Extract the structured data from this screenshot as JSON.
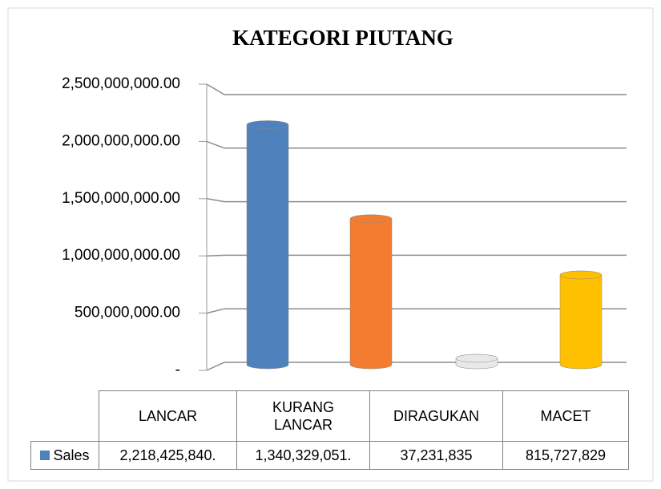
{
  "chart_data": {
    "type": "bar",
    "title": "KATEGORI PIUTANG",
    "categories": [
      "LANCAR",
      "KURANG LANCAR",
      "DIRAGUKAN",
      "MACET"
    ],
    "series": [
      {
        "name": "Sales",
        "color": "#4f81bd",
        "colors": [
          "#4f81bd",
          "#f47c30",
          "#e8e8e8",
          "#ffc000"
        ],
        "values": [
          2218425840,
          1340329051,
          37231835,
          815727829
        ],
        "value_labels": [
          "2,218,425,840.",
          "1,340,329,051.",
          "37,231,835",
          "815,727,829"
        ]
      }
    ],
    "ylim": [
      0,
      2500000000
    ],
    "yticks": [
      {
        "value": 0,
        "label": "-"
      },
      {
        "value": 500000000,
        "label": "500,000,000.00"
      },
      {
        "value": 1000000000,
        "label": "1,000,000,000.00"
      },
      {
        "value": 1500000000,
        "label": "1,500,000,000.00"
      },
      {
        "value": 2000000000,
        "label": "2,000,000,000.00"
      },
      {
        "value": 2500000000,
        "label": "2,500,000,000.00"
      }
    ],
    "grid": true
  }
}
